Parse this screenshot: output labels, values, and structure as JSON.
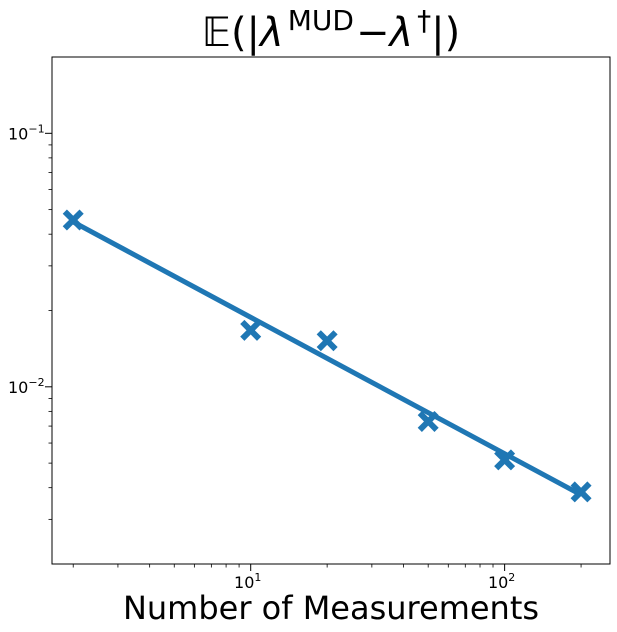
{
  "chart_data": {
    "type": "scatter",
    "title": {
      "bb": "𝔼",
      "open": "(|",
      "lam1": "λ",
      "sup1": "MUD",
      "minus": "−",
      "lam2": "λ",
      "sup2": "†",
      "close": "|)"
    },
    "xlabel": "Number of Measurements",
    "ylabel": "",
    "x_scale": "log",
    "y_scale": "log",
    "xlim": [
      1.65,
      260
    ],
    "ylim": [
      0.002,
      0.2
    ],
    "grid": false,
    "x_ticks": [
      {
        "value": 10,
        "base": "10",
        "exp": "1"
      },
      {
        "value": 100,
        "base": "10",
        "exp": "2"
      }
    ],
    "y_ticks": [
      {
        "value": 0.01,
        "base": "10",
        "exp": "−2"
      },
      {
        "value": 0.1,
        "base": "10",
        "exp": "−1"
      }
    ],
    "series": [
      {
        "marker": "X",
        "color": "#1f77b4",
        "x": [
          2,
          10,
          20,
          50,
          100,
          200
        ],
        "y": [
          0.0455,
          0.0167,
          0.0152,
          0.0073,
          0.00515,
          0.00385
        ]
      }
    ],
    "fit_line": {
      "color": "#1f77b4",
      "x": [
        2,
        200
      ],
      "y": [
        0.0447,
        0.00375
      ]
    }
  }
}
